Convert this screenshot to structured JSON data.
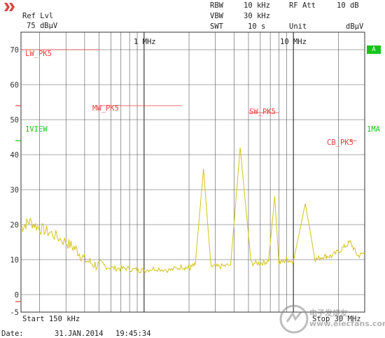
{
  "header": {
    "ref_lvl_label": "Ref Lvl",
    "ref_lvl_value": "75 dBµV",
    "rbw_label": "RBW",
    "rbw_value": "10 kHz",
    "vbw_label": "VBW",
    "vbw_value": "30 kHz",
    "swt_label": "SWT",
    "swt_value": "10 s",
    "rf_att_label": "RF Att",
    "rf_att_value": "10 dB",
    "unit_label": "Unit",
    "unit_value": "dBµV"
  },
  "side_labels": {
    "a_tag": "A",
    "view_left": "1VIEW",
    "view_right": "1MA"
  },
  "limit_lines": [
    {
      "name": "LW_PK5"
    },
    {
      "name": "MW_PK5"
    },
    {
      "name": "SW_PK5"
    },
    {
      "name": "CB_PK5"
    }
  ],
  "freq_markers": [
    "1 MHz",
    "10 MHz"
  ],
  "footer": {
    "start": "Start 150 kHz",
    "stop": "Stop 30 MHz",
    "date_label": "Date:",
    "date_value": "31.JAN.2014",
    "time_value": "19:45:34"
  },
  "watermark": "电子发烧友 www.elecfans.com",
  "colors": {
    "trace": "#d4c21a",
    "limit": "#e8413c",
    "grid": "#444444"
  },
  "chart_data": {
    "type": "line",
    "title": "",
    "xlabel": "",
    "ylabel": "dBµV",
    "xscale": "log",
    "xlim_hz": [
      150000,
      30000000
    ],
    "ylim": [
      -5,
      75
    ],
    "yticks": [
      0,
      10,
      20,
      30,
      40,
      50,
      60,
      70
    ],
    "limit_lines": [
      {
        "name": "LW_PK5",
        "level": 70
      },
      {
        "name": "MW_PK5",
        "level": 54
      },
      {
        "name": "SW_PK5",
        "level": 52
      },
      {
        "name": "CB_PK5",
        "level": 44
      }
    ],
    "series": [
      {
        "x": [
          150000,
          170000,
          200000,
          240000,
          300000,
          350000,
          400000,
          470000,
          550000,
          650000,
          760000,
          900000,
          1000000,
          1200000,
          1500000,
          1800000,
          2000000,
          2200000,
          2500000,
          2800000,
          3200000,
          3800000,
          4400000,
          5200000,
          6000000,
          6800000,
          7500000,
          8000000,
          9000000,
          10000000,
          12000000,
          14000000,
          16000000,
          18000000,
          21000000,
          24000000,
          27000000,
          30000000
        ],
        "y": [
          19,
          21,
          19,
          17.5,
          15,
          13,
          10,
          8.5,
          8,
          7.5,
          7.5,
          7,
          7,
          7.5,
          7,
          8,
          7.5,
          8.5,
          36,
          8,
          8,
          8.5,
          42,
          9,
          9,
          9.5,
          28,
          9,
          10,
          9.5,
          26,
          10,
          11,
          11,
          13,
          15,
          11,
          12
        ]
      }
    ]
  }
}
